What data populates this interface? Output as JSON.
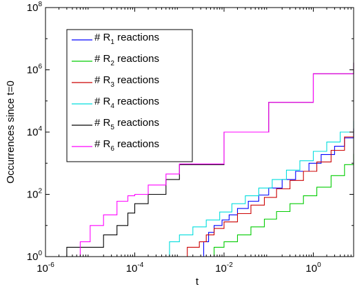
{
  "chart_data": {
    "type": "line",
    "title": "",
    "xlabel": "t",
    "ylabel": "Occurrences since t=0",
    "xscale": "log",
    "yscale": "log",
    "xlim": [
      1e-06,
      8
    ],
    "ylim": [
      1,
      100000000.0
    ],
    "x_ticks": [
      {
        "base": "10",
        "exp": "-6",
        "value": 1e-06
      },
      {
        "base": "10",
        "exp": "-4",
        "value": 0.0001
      },
      {
        "base": "10",
        "exp": "-2",
        "value": 0.01
      },
      {
        "base": "10",
        "exp": "0",
        "value": 1
      }
    ],
    "y_ticks": [
      {
        "base": "10",
        "exp": "0",
        "value": 1
      },
      {
        "base": "10",
        "exp": "2",
        "value": 100
      },
      {
        "base": "10",
        "exp": "4",
        "value": 10000
      },
      {
        "base": "10",
        "exp": "6",
        "value": 1000000
      },
      {
        "base": "10",
        "exp": "8",
        "value": 100000000
      }
    ],
    "legend_position": "top-left",
    "grid": false,
    "series": [
      {
        "name": "# R1 reactions",
        "legend": {
          "pre": "# R",
          "sub": "1",
          "post": " reactions"
        },
        "color": "#0000ff",
        "x": [
          0.0028,
          0.0035,
          0.0045,
          0.006,
          0.009,
          0.013,
          0.02,
          0.035,
          0.06,
          0.1,
          0.2,
          0.4,
          0.8,
          1.5,
          3,
          5,
          8
        ],
        "y": [
          1,
          3,
          6,
          10,
          15,
          22,
          35,
          60,
          95,
          160,
          300,
          550,
          1000,
          1900,
          3500,
          6500,
          13000
        ]
      },
      {
        "name": "# R2 reactions",
        "legend": {
          "pre": "# R",
          "sub": "2",
          "post": " reactions"
        },
        "color": "#00cc00",
        "x": [
          0.0035,
          0.006,
          0.01,
          0.02,
          0.04,
          0.08,
          0.15,
          0.3,
          0.6,
          1.2,
          2.5,
          5,
          8
        ],
        "y": [
          1,
          2,
          3,
          5,
          9,
          16,
          28,
          50,
          90,
          170,
          400,
          900,
          2000
        ]
      },
      {
        "name": "# R3 reactions",
        "legend": {
          "pre": "# R",
          "sub": "3",
          "post": " reactions"
        },
        "color": "#cc0000",
        "x": [
          0.0008,
          0.0015,
          0.0028,
          0.004,
          0.006,
          0.01,
          0.02,
          0.04,
          0.08,
          0.15,
          0.3,
          0.6,
          1.2,
          2.5,
          5,
          8
        ],
        "y": [
          1,
          2,
          3,
          5,
          8,
          13,
          24,
          45,
          80,
          150,
          280,
          550,
          1100,
          2600,
          7000,
          13000
        ]
      },
      {
        "name": "# R4 reactions",
        "legend": {
          "pre": "# R",
          "sub": "4",
          "post": " reactions"
        },
        "color": "#00dddd",
        "x": [
          0.0004,
          0.0006,
          0.001,
          0.002,
          0.004,
          0.008,
          0.015,
          0.03,
          0.06,
          0.12,
          0.25,
          0.5,
          1,
          2,
          4,
          8
        ],
        "y": [
          1,
          3,
          5,
          9,
          15,
          27,
          50,
          90,
          160,
          300,
          600,
          1200,
          2400,
          4800,
          10000,
          23000
        ]
      },
      {
        "name": "# R5 reactions",
        "legend": {
          "pre": "# R",
          "sub": "5",
          "post": " reactions"
        },
        "color": "#000000",
        "x": [
          1.7e-06,
          3e-06,
          1e-05,
          2e-05,
          4e-05,
          7e-05,
          0.0001,
          0.0002,
          0.0005,
          0.001,
          0.01,
          0.1,
          1,
          8
        ],
        "y": [
          1,
          2,
          2,
          5,
          10,
          25,
          50,
          100,
          300,
          900,
          10000,
          90000,
          750000,
          1700000
        ]
      },
      {
        "name": "# R6 reactions",
        "legend": {
          "pre": "# R",
          "sub": "6",
          "post": " reactions"
        },
        "color": "#ff00ff",
        "x": [
          4e-06,
          6e-06,
          1e-05,
          2e-05,
          4e-05,
          7e-05,
          0.0001,
          0.0002,
          0.0005,
          0.001,
          0.01,
          0.1,
          1,
          8
        ],
        "y": [
          1,
          3,
          10,
          22,
          60,
          90,
          100,
          200,
          450,
          950,
          10000,
          90000,
          750000,
          1700000
        ]
      }
    ]
  }
}
